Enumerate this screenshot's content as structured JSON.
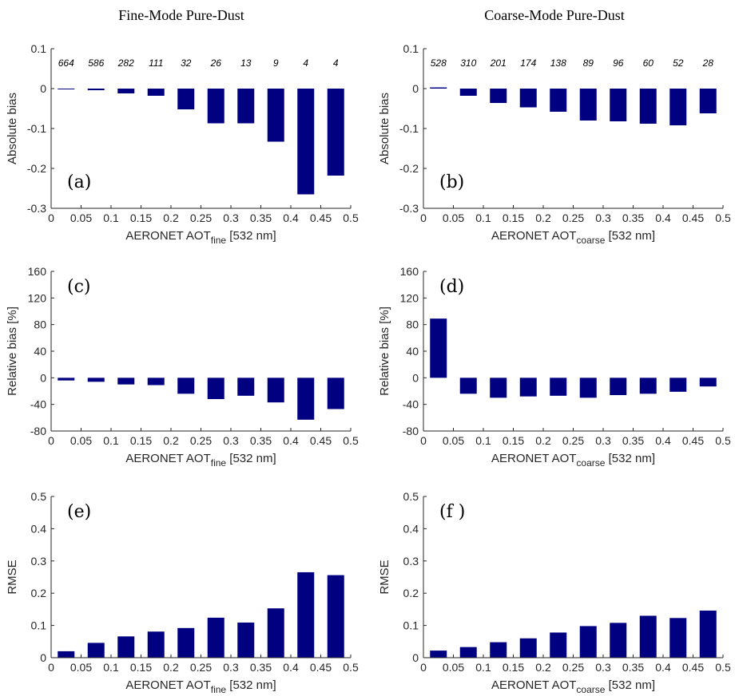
{
  "titles": [
    "Fine-Mode Pure-Dust",
    "Coarse-Mode Pure-Dust"
  ],
  "colors": {
    "bar": "#000080"
  },
  "chart_data": [
    {
      "id": "a",
      "type": "bar",
      "panel_label": "(a)",
      "ylabel": "Absolute bias",
      "xlabel_main": "AERONET AOT",
      "xlabel_sub": "fine",
      "xlabel_tail": " [532 nm]",
      "x_ticks": [
        "0",
        "0.05",
        "0.1",
        "0.15",
        "0.2",
        "0.25",
        "0.3",
        "0.35",
        "0.4",
        "0.45",
        "0.5"
      ],
      "y_ticks": [
        "-0.3",
        "-0.2",
        "-0.1",
        "0",
        "0.1"
      ],
      "xlim": [
        0,
        0.5
      ],
      "ylim": [
        -0.3,
        0.1
      ],
      "x": [
        0.025,
        0.075,
        0.125,
        0.175,
        0.225,
        0.275,
        0.325,
        0.375,
        0.425,
        0.475
      ],
      "values": [
        -0.002,
        -0.004,
        -0.012,
        -0.018,
        -0.052,
        -0.087,
        -0.087,
        -0.133,
        -0.265,
        -0.218
      ],
      "counts": [
        "664",
        "586",
        "282",
        "111",
        "32",
        "26",
        "13",
        "9",
        "4",
        "4"
      ]
    },
    {
      "id": "b",
      "type": "bar",
      "panel_label": "(b)",
      "ylabel": "Absolute bias",
      "xlabel_main": "AERONET AOT",
      "xlabel_sub": "coarse",
      "xlabel_tail": " [532 nm]",
      "x_ticks": [
        "0",
        "0.05",
        "0.1",
        "0.15",
        "0.2",
        "0.25",
        "0.3",
        "0.35",
        "0.4",
        "0.45",
        "0.5"
      ],
      "y_ticks": [
        "-0.3",
        "-0.2",
        "-0.1",
        "0",
        "0.1"
      ],
      "xlim": [
        0,
        0.5
      ],
      "ylim": [
        -0.3,
        0.1
      ],
      "x": [
        0.025,
        0.075,
        0.125,
        0.175,
        0.225,
        0.275,
        0.325,
        0.375,
        0.425,
        0.475
      ],
      "values": [
        0.003,
        -0.018,
        -0.036,
        -0.047,
        -0.058,
        -0.08,
        -0.082,
        -0.088,
        -0.092,
        -0.062
      ],
      "counts": [
        "528",
        "310",
        "201",
        "174",
        "138",
        "89",
        "96",
        "60",
        "52",
        "28"
      ]
    },
    {
      "id": "c",
      "type": "bar",
      "panel_label": "(c)",
      "ylabel": "Relative bias [%]",
      "xlabel_main": "AERONET AOT",
      "xlabel_sub": "fine",
      "xlabel_tail": " [532 nm]",
      "x_ticks": [
        "0",
        "0.05",
        "0.1",
        "0.15",
        "0.2",
        "0.25",
        "0.3",
        "0.35",
        "0.4",
        "0.45",
        "0.5"
      ],
      "y_ticks": [
        "-80",
        "-40",
        "0",
        "40",
        "80",
        "120",
        "160"
      ],
      "xlim": [
        0,
        0.5
      ],
      "ylim": [
        -80,
        160
      ],
      "x": [
        0.025,
        0.075,
        0.125,
        0.175,
        0.225,
        0.275,
        0.325,
        0.375,
        0.425,
        0.475
      ],
      "values": [
        -4,
        -6,
        -10,
        -11,
        -24,
        -32,
        -27,
        -37,
        -63,
        -47
      ]
    },
    {
      "id": "d",
      "type": "bar",
      "panel_label": "(d)",
      "ylabel": "Relative bias [%]",
      "xlabel_main": "AERONET AOT",
      "xlabel_sub": "coarse",
      "xlabel_tail": " [532 nm]",
      "x_ticks": [
        "0",
        "0.05",
        "0.1",
        "0.15",
        "0.2",
        "0.25",
        "0.3",
        "0.35",
        "0.4",
        "0.45",
        "0.5"
      ],
      "y_ticks": [
        "-80",
        "-40",
        "0",
        "40",
        "80",
        "120",
        "160"
      ],
      "xlim": [
        0,
        0.5
      ],
      "ylim": [
        -80,
        160
      ],
      "x": [
        0.025,
        0.075,
        0.125,
        0.175,
        0.225,
        0.275,
        0.325,
        0.375,
        0.425,
        0.475
      ],
      "values": [
        89,
        -24,
        -30,
        -28,
        -27,
        -30,
        -26,
        -24,
        -21,
        -13
      ]
    },
    {
      "id": "e",
      "type": "bar",
      "panel_label": "(e)",
      "ylabel": "RMSE",
      "xlabel_main": "AERONET AOT",
      "xlabel_sub": "fine",
      "xlabel_tail": " [532 nm]",
      "x_ticks": [
        "0",
        "0.05",
        "0.1",
        "0.15",
        "0.2",
        "0.25",
        "0.3",
        "0.35",
        "0.4",
        "0.45",
        "0.5"
      ],
      "y_ticks": [
        "0",
        "0.1",
        "0.2",
        "0.3",
        "0.4",
        "0.5"
      ],
      "xlim": [
        0,
        0.5
      ],
      "ylim": [
        0,
        0.5
      ],
      "x": [
        0.025,
        0.075,
        0.125,
        0.175,
        0.225,
        0.275,
        0.325,
        0.375,
        0.425,
        0.475
      ],
      "values": [
        0.02,
        0.046,
        0.066,
        0.081,
        0.092,
        0.124,
        0.109,
        0.153,
        0.265,
        0.256
      ]
    },
    {
      "id": "f",
      "type": "bar",
      "panel_label": "(f )",
      "ylabel": "RMSE",
      "xlabel_main": "AERONET AOT",
      "xlabel_sub": "coarse",
      "xlabel_tail": " [532 nm]",
      "x_ticks": [
        "0",
        "0.05",
        "0.1",
        "0.15",
        "0.2",
        "0.25",
        "0.3",
        "0.35",
        "0.4",
        "0.45",
        "0.5"
      ],
      "y_ticks": [
        "0",
        "0.1",
        "0.2",
        "0.3",
        "0.4",
        "0.5"
      ],
      "xlim": [
        0,
        0.5
      ],
      "ylim": [
        0,
        0.5
      ],
      "x": [
        0.025,
        0.075,
        0.125,
        0.175,
        0.225,
        0.275,
        0.325,
        0.375,
        0.425,
        0.475
      ],
      "values": [
        0.022,
        0.033,
        0.048,
        0.06,
        0.078,
        0.098,
        0.108,
        0.13,
        0.123,
        0.146
      ]
    }
  ]
}
